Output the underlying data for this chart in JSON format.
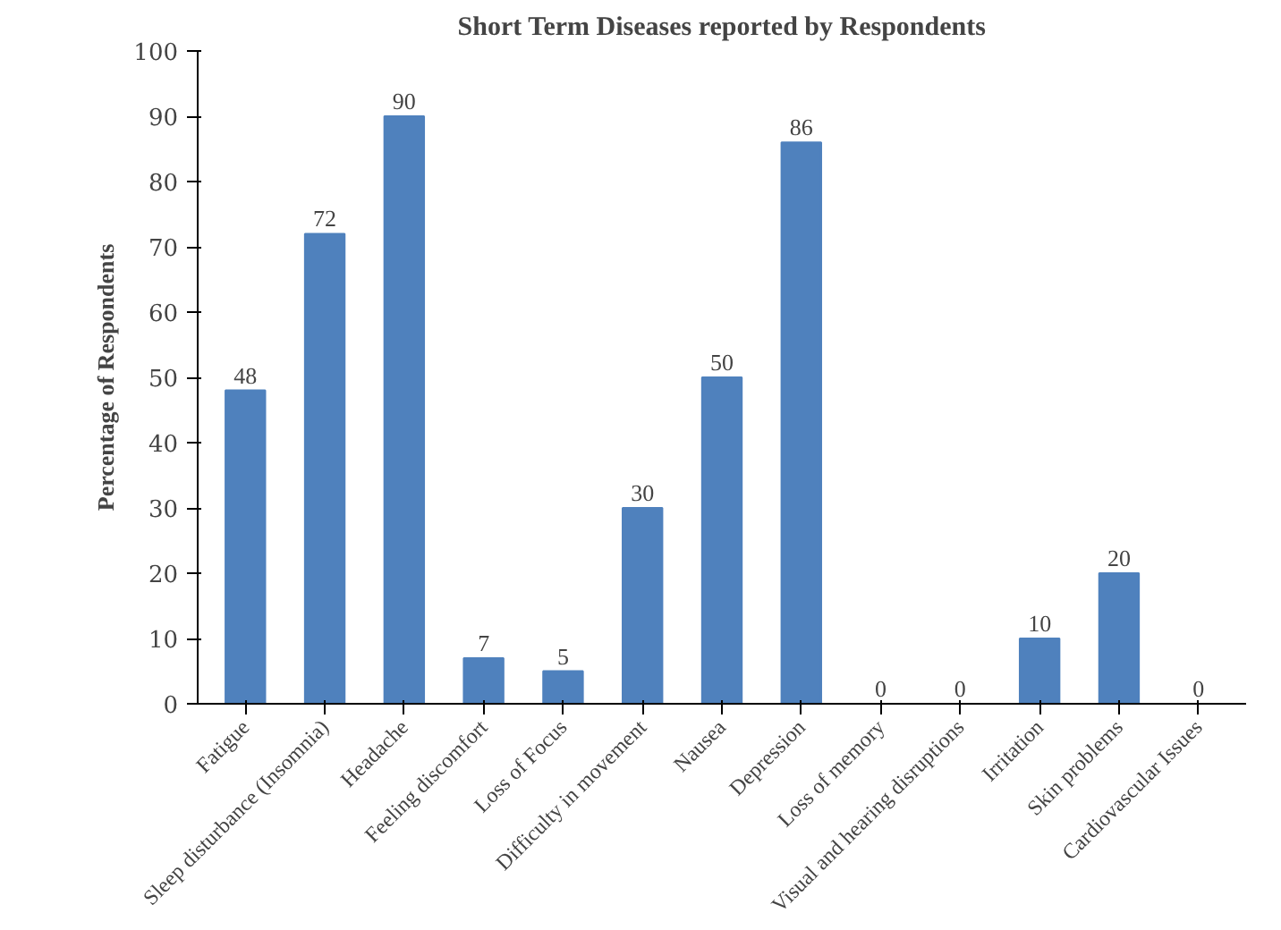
{
  "chart_data": {
    "type": "bar",
    "title": "Short Term Diseases reported by Respondents",
    "ylabel": "Percentage of Respondents",
    "categories": [
      "Fatigue",
      "Sleep disturbance (Insomnia)",
      "Headache",
      "Feeling discomfort",
      "Loss of Focus",
      "Difficulty in movement",
      "Nausea",
      "Depression",
      "Loss of memory",
      "Visual and hearing disruptions",
      "Irritation",
      "Skin problems",
      "Cardiovascular Issues"
    ],
    "values": [
      48,
      72,
      90,
      7,
      5,
      30,
      50,
      86,
      0,
      0,
      10,
      20,
      0
    ],
    "color": "#4f81bd",
    "ylim": [
      0,
      100
    ],
    "yticks": [
      0,
      10,
      20,
      30,
      40,
      50,
      60,
      70,
      80,
      90,
      100
    ],
    "data_labels": true,
    "grid": false
  }
}
